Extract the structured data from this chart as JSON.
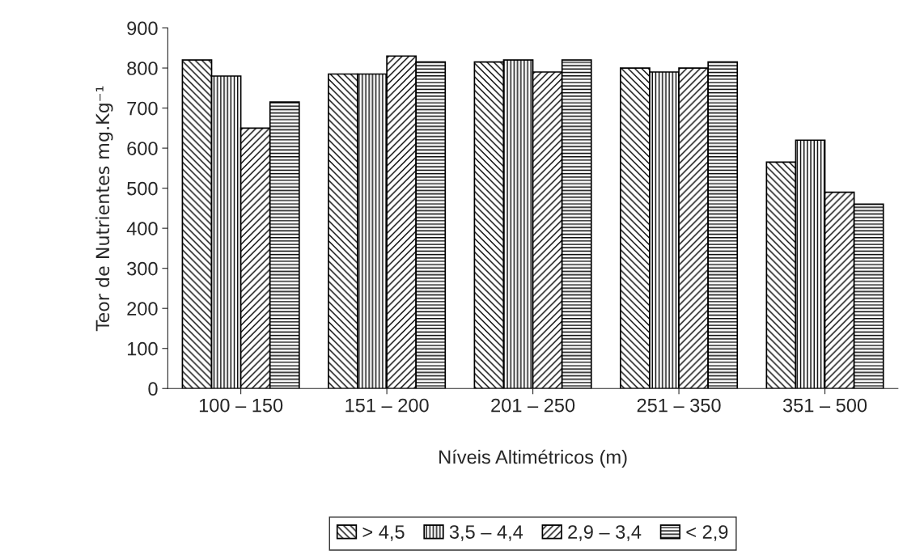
{
  "chart_data": {
    "type": "bar",
    "xlabel": "Níveis Altimétricos (m)",
    "ylabel": "Teor de Nutrientes mg.Kg⁻¹",
    "categories": [
      "100 – 150",
      "151 – 200",
      "201 – 250",
      "251 – 350",
      "351 – 500"
    ],
    "series": [
      {
        "name": "> 4,5",
        "color": "#000000",
        "values": [
          820,
          785,
          815,
          800,
          565
        ]
      },
      {
        "name": "3,5 – 4,4",
        "color": "#000000",
        "values": [
          780,
          785,
          820,
          790,
          620
        ]
      },
      {
        "name": "2,9 – 3,4",
        "color": "#000000",
        "values": [
          650,
          830,
          790,
          800,
          490
        ]
      },
      {
        "name": "< 2,9",
        "color": "#000000",
        "values": [
          715,
          815,
          820,
          815,
          460
        ]
      }
    ],
    "ylim": [
      0,
      900
    ],
    "yticks": [
      0,
      100,
      200,
      300,
      400,
      500,
      600,
      700,
      800,
      900
    ],
    "grid": false,
    "legend": "bottom"
  }
}
